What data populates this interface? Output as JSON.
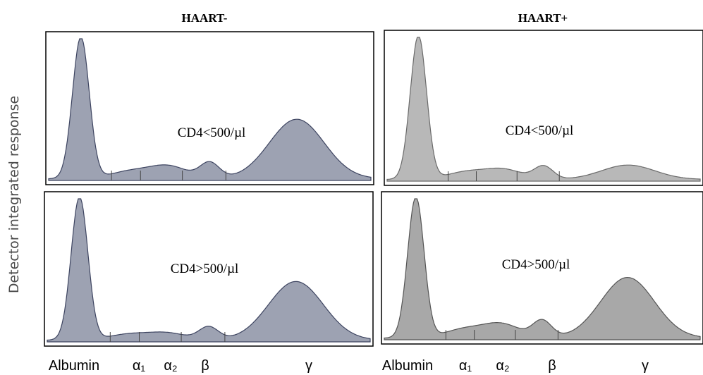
{
  "figure": {
    "ylabel": "Detector integrated response",
    "columns": [
      "HAART-",
      "HAART+"
    ],
    "rows": [
      "CD4<500/µl",
      "CD4>500/µl"
    ],
    "xtick_labels": [
      "Albumin",
      "α₁",
      "α₂",
      "β",
      "γ"
    ]
  },
  "chart_data": [
    {
      "type": "area",
      "column": "HAART-",
      "label": "CD4<500/µl",
      "x": [
        "Albumin",
        "α₁",
        "α₂",
        "β",
        "γ"
      ],
      "peaks": [
        {
          "fraction": "Albumin",
          "value": 1.0
        },
        {
          "fraction": "α₁",
          "value": 0.05
        },
        {
          "fraction": "α₂",
          "value": 0.09
        },
        {
          "fraction": "β",
          "value": 0.11
        },
        {
          "fraction": "γ",
          "value": 0.42
        }
      ],
      "fill": "#9da2b2"
    },
    {
      "type": "area",
      "column": "HAART+",
      "label": "CD4<500/µl",
      "x": [
        "Albumin",
        "α₁",
        "α₂",
        "β",
        "γ"
      ],
      "peaks": [
        {
          "fraction": "Albumin",
          "value": 1.0
        },
        {
          "fraction": "α₁",
          "value": 0.05
        },
        {
          "fraction": "α₂",
          "value": 0.07
        },
        {
          "fraction": "β",
          "value": 0.09
        },
        {
          "fraction": "γ",
          "value": 0.1
        }
      ],
      "fill": "#b8b8b8"
    },
    {
      "type": "area",
      "column": "HAART-",
      "label": "CD4>500/µl",
      "x": [
        "Albumin",
        "α₁",
        "α₂",
        "β",
        "γ"
      ],
      "peaks": [
        {
          "fraction": "Albumin",
          "value": 1.0
        },
        {
          "fraction": "α₁",
          "value": 0.04
        },
        {
          "fraction": "α₂",
          "value": 0.05
        },
        {
          "fraction": "β",
          "value": 0.09
        },
        {
          "fraction": "γ",
          "value": 0.41
        }
      ],
      "fill": "#9da2b2"
    },
    {
      "type": "area",
      "column": "HAART+",
      "label": "CD4>500/µl",
      "x": [
        "Albumin",
        "α₁",
        "α₂",
        "β",
        "γ"
      ],
      "peaks": [
        {
          "fraction": "Albumin",
          "value": 1.0
        },
        {
          "fraction": "α₁",
          "value": 0.06
        },
        {
          "fraction": "α₂",
          "value": 0.1
        },
        {
          "fraction": "β",
          "value": 0.12
        },
        {
          "fraction": "γ",
          "value": 0.43
        }
      ],
      "fill": "#a8a8a8"
    }
  ]
}
